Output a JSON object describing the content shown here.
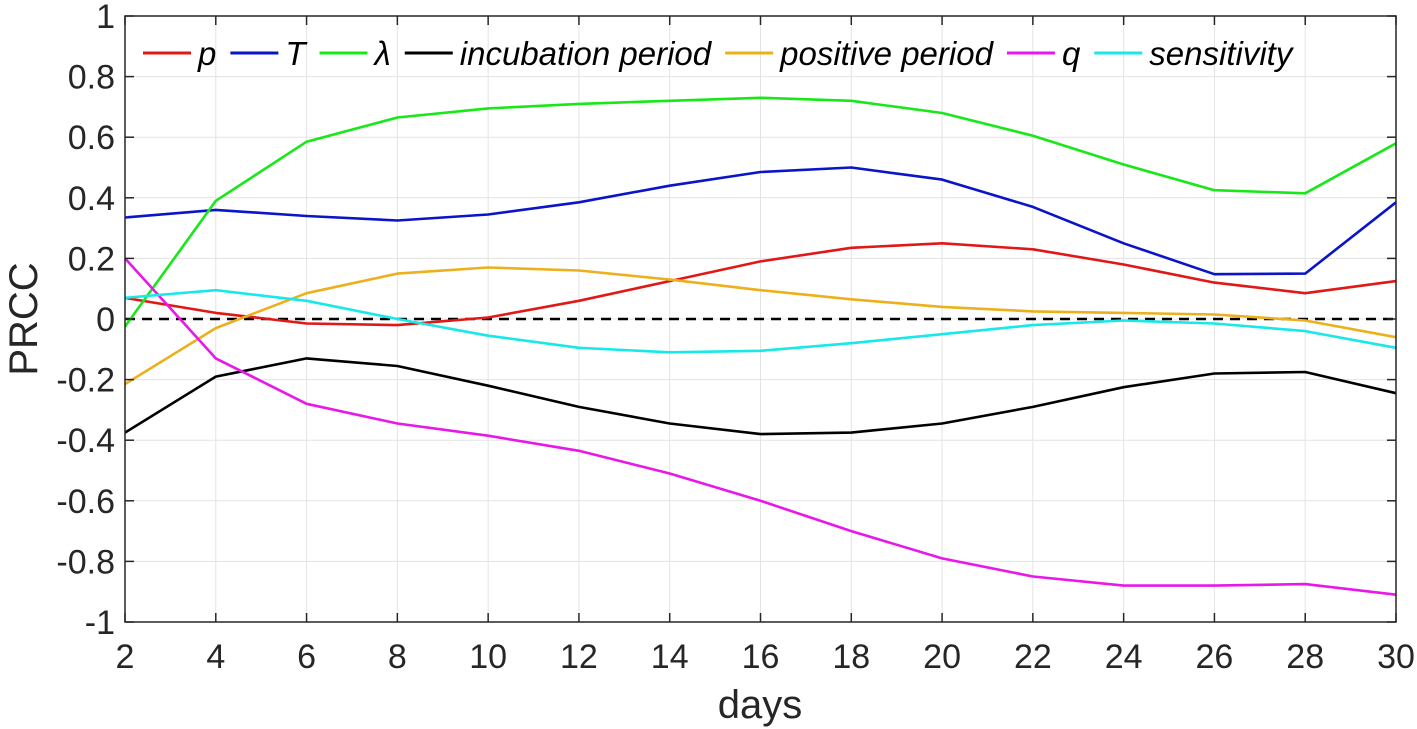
{
  "chart_data": {
    "type": "line",
    "title": "",
    "xlabel": "days",
    "ylabel": "PRCC",
    "xlim": [
      2,
      30
    ],
    "ylim": [
      -1,
      1
    ],
    "grid": true,
    "legend_position": "top",
    "x": [
      2,
      4,
      6,
      8,
      10,
      12,
      14,
      16,
      18,
      20,
      22,
      24,
      26,
      28,
      30
    ],
    "xticks": [
      2,
      4,
      6,
      8,
      10,
      12,
      14,
      16,
      18,
      20,
      22,
      24,
      26,
      28,
      30
    ],
    "xtick_labels": [
      "2",
      "4",
      "6",
      "8",
      "10",
      "12",
      "14",
      "16",
      "18",
      "20",
      "22",
      "24",
      "26",
      "28",
      "30"
    ],
    "yticks": [
      -1,
      -0.8,
      -0.6,
      -0.4,
      -0.2,
      0,
      0.2,
      0.4,
      0.6,
      0.8,
      1
    ],
    "ytick_labels": [
      "-1",
      "-0.8",
      "-0.6",
      "-0.4",
      "-0.2",
      "0",
      "0.2",
      "0.4",
      "0.6",
      "0.8",
      "1"
    ],
    "reference_line": {
      "y": 0,
      "style": "dashed",
      "color": "#000000"
    },
    "series": [
      {
        "name": "p",
        "color": "#e01818",
        "values": [
          0.07,
          0.02,
          -0.015,
          -0.02,
          0.005,
          0.06,
          0.125,
          0.19,
          0.235,
          0.25,
          0.23,
          0.18,
          0.12,
          0.085,
          0.125
        ]
      },
      {
        "name": "T",
        "color": "#0a14c8",
        "values": [
          0.335,
          0.36,
          0.34,
          0.325,
          0.345,
          0.385,
          0.44,
          0.485,
          0.5,
          0.46,
          0.37,
          0.25,
          0.148,
          0.15,
          0.385
        ]
      },
      {
        "name": "λ",
        "color": "#18e818",
        "values": [
          -0.025,
          0.39,
          0.585,
          0.665,
          0.695,
          0.71,
          0.72,
          0.73,
          0.72,
          0.68,
          0.605,
          0.51,
          0.425,
          0.415,
          0.58
        ]
      },
      {
        "name": "incubation period",
        "color": "#000000",
        "values": [
          -0.375,
          -0.19,
          -0.13,
          -0.155,
          -0.22,
          -0.29,
          -0.345,
          -0.38,
          -0.375,
          -0.345,
          -0.29,
          -0.225,
          -0.18,
          -0.175,
          -0.245
        ]
      },
      {
        "name": "positive period",
        "color": "#edb01c",
        "values": [
          -0.215,
          -0.03,
          0.085,
          0.15,
          0.17,
          0.16,
          0.13,
          0.095,
          0.065,
          0.04,
          0.025,
          0.02,
          0.015,
          -0.005,
          -0.06
        ]
      },
      {
        "name": "q",
        "color": "#e818e8",
        "values": [
          0.2,
          -0.13,
          -0.28,
          -0.345,
          -0.385,
          -0.435,
          -0.51,
          -0.6,
          -0.7,
          -0.79,
          -0.85,
          -0.88,
          -0.88,
          -0.875,
          -0.91
        ]
      },
      {
        "name": "sensitivity",
        "color": "#18e8e8",
        "values": [
          0.07,
          0.095,
          0.06,
          0.0,
          -0.055,
          -0.095,
          -0.11,
          -0.105,
          -0.08,
          -0.05,
          -0.02,
          -0.005,
          -0.015,
          -0.04,
          -0.095
        ]
      }
    ]
  }
}
